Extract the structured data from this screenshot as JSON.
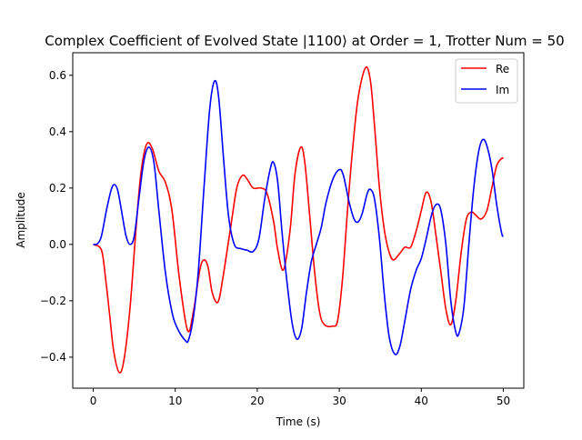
{
  "chart_data": {
    "type": "line",
    "title": "Complex Coefficient of Evolved State |1100⟩ at Order = 1, Trotter Num = 50",
    "xlabel": "Time (s)",
    "ylabel": "Amplitude",
    "xlim": [
      -2.5,
      52.5
    ],
    "ylim": [
      -0.51,
      0.68
    ],
    "x_ticks": [
      0,
      10,
      20,
      30,
      40,
      50
    ],
    "y_ticks": [
      -0.4,
      -0.2,
      0.0,
      0.2,
      0.4,
      0.6
    ],
    "y_tick_labels": [
      "−0.4",
      "−0.2",
      "0.0",
      "0.2",
      "0.4",
      "0.6"
    ],
    "grid": false,
    "legend_position": "top-right",
    "series": [
      {
        "name": "Re",
        "color": "#ff0000",
        "points": [
          [
            0,
            0.0
          ],
          [
            1,
            -0.02
          ],
          [
            1.5,
            -0.12
          ],
          [
            2,
            -0.25
          ],
          [
            2.5,
            -0.38
          ],
          [
            3.2,
            -0.455
          ],
          [
            3.8,
            -0.4
          ],
          [
            4.5,
            -0.22
          ],
          [
            5.2,
            0.05
          ],
          [
            5.8,
            0.25
          ],
          [
            6.5,
            0.355
          ],
          [
            7.2,
            0.34
          ],
          [
            8,
            0.26
          ],
          [
            8.8,
            0.22
          ],
          [
            9.6,
            0.12
          ],
          [
            10.5,
            -0.12
          ],
          [
            11.5,
            -0.305
          ],
          [
            12.2,
            -0.24
          ],
          [
            13,
            -0.09
          ],
          [
            13.5,
            -0.055
          ],
          [
            14,
            -0.08
          ],
          [
            14.5,
            -0.17
          ],
          [
            15.2,
            -0.205
          ],
          [
            15.8,
            -0.12
          ],
          [
            16.8,
            0.07
          ],
          [
            17.5,
            0.2
          ],
          [
            18.2,
            0.245
          ],
          [
            18.8,
            0.23
          ],
          [
            19.5,
            0.2
          ],
          [
            20.5,
            0.2
          ],
          [
            21.2,
            0.18
          ],
          [
            22,
            0.08
          ],
          [
            22.5,
            -0.02
          ],
          [
            23.2,
            -0.09
          ],
          [
            24,
            0.05
          ],
          [
            24.6,
            0.25
          ],
          [
            25.3,
            0.345
          ],
          [
            25.8,
            0.29
          ],
          [
            26.4,
            0.1
          ],
          [
            27,
            -0.1
          ],
          [
            27.6,
            -0.24
          ],
          [
            28.2,
            -0.285
          ],
          [
            29.2,
            -0.29
          ],
          [
            29.8,
            -0.27
          ],
          [
            30.4,
            -0.12
          ],
          [
            31,
            0.12
          ],
          [
            31.6,
            0.33
          ],
          [
            32.3,
            0.52
          ],
          [
            33.2,
            0.627
          ],
          [
            33.8,
            0.58
          ],
          [
            34.3,
            0.42
          ],
          [
            34.9,
            0.2
          ],
          [
            35.5,
            0.05
          ],
          [
            36.1,
            -0.03
          ],
          [
            36.6,
            -0.055
          ],
          [
            37.3,
            -0.035
          ],
          [
            38,
            -0.01
          ],
          [
            38.7,
            -0.01
          ],
          [
            39.4,
            0.05
          ],
          [
            40,
            0.12
          ],
          [
            40.6,
            0.185
          ],
          [
            41.2,
            0.15
          ],
          [
            41.8,
            0.03
          ],
          [
            42.4,
            -0.1
          ],
          [
            43,
            -0.23
          ],
          [
            43.6,
            -0.285
          ],
          [
            44.2,
            -0.2
          ],
          [
            44.9,
            -0.02
          ],
          [
            45.5,
            0.09
          ],
          [
            46.1,
            0.115
          ],
          [
            46.6,
            0.105
          ],
          [
            47.3,
            0.09
          ],
          [
            48,
            0.12
          ],
          [
            48.6,
            0.2
          ],
          [
            49.2,
            0.28
          ],
          [
            49.8,
            0.305
          ],
          [
            50,
            0.305
          ]
        ]
      },
      {
        "name": "Im",
        "color": "#0000ff",
        "points": [
          [
            0,
            0.0
          ],
          [
            0.5,
            0.002
          ],
          [
            1,
            0.03
          ],
          [
            1.6,
            0.12
          ],
          [
            2.2,
            0.195
          ],
          [
            2.6,
            0.212
          ],
          [
            3,
            0.19
          ],
          [
            3.5,
            0.11
          ],
          [
            4,
            0.03
          ],
          [
            4.5,
            0.0
          ],
          [
            5,
            0.03
          ],
          [
            5.6,
            0.17
          ],
          [
            6.2,
            0.3
          ],
          [
            6.8,
            0.345
          ],
          [
            7.4,
            0.29
          ],
          [
            8,
            0.12
          ],
          [
            8.8,
            -0.1
          ],
          [
            9.6,
            -0.24
          ],
          [
            10.3,
            -0.3
          ],
          [
            11.2,
            -0.34
          ],
          [
            11.6,
            -0.34
          ],
          [
            12.2,
            -0.26
          ],
          [
            12.8,
            -0.1
          ],
          [
            13.5,
            0.2
          ],
          [
            14.2,
            0.48
          ],
          [
            14.8,
            0.58
          ],
          [
            15.3,
            0.52
          ],
          [
            15.9,
            0.3
          ],
          [
            16.5,
            0.1
          ],
          [
            17.2,
            0.0
          ],
          [
            18,
            -0.015
          ],
          [
            18.7,
            -0.02
          ],
          [
            19.5,
            -0.025
          ],
          [
            20.2,
            0.02
          ],
          [
            20.9,
            0.16
          ],
          [
            21.6,
            0.27
          ],
          [
            22,
            0.29
          ],
          [
            22.5,
            0.22
          ],
          [
            23,
            0.05
          ],
          [
            23.5,
            -0.1
          ],
          [
            24.2,
            -0.27
          ],
          [
            24.8,
            -0.335
          ],
          [
            25.4,
            -0.3
          ],
          [
            26,
            -0.17
          ],
          [
            26.6,
            -0.06
          ],
          [
            27.2,
            0.0
          ],
          [
            27.8,
            0.06
          ],
          [
            28.4,
            0.15
          ],
          [
            29.2,
            0.23
          ],
          [
            30,
            0.265
          ],
          [
            30.5,
            0.245
          ],
          [
            31.2,
            0.15
          ],
          [
            31.8,
            0.09
          ],
          [
            32.3,
            0.08
          ],
          [
            32.8,
            0.11
          ],
          [
            33.4,
            0.18
          ],
          [
            33.8,
            0.195
          ],
          [
            34.3,
            0.16
          ],
          [
            34.9,
            0.02
          ],
          [
            35.5,
            -0.18
          ],
          [
            36.1,
            -0.33
          ],
          [
            36.8,
            -0.39
          ],
          [
            37.4,
            -0.36
          ],
          [
            38,
            -0.27
          ],
          [
            38.7,
            -0.16
          ],
          [
            39.4,
            -0.09
          ],
          [
            40,
            -0.05
          ],
          [
            40.6,
            0.02
          ],
          [
            41.3,
            0.11
          ],
          [
            41.9,
            0.143
          ],
          [
            42.4,
            0.12
          ],
          [
            43,
            0.0
          ],
          [
            43.6,
            -0.2
          ],
          [
            44.2,
            -0.31
          ],
          [
            44.6,
            -0.315
          ],
          [
            45.2,
            -0.22
          ],
          [
            45.8,
            0.0
          ],
          [
            46.4,
            0.2
          ],
          [
            47,
            0.33
          ],
          [
            47.5,
            0.372
          ],
          [
            48,
            0.35
          ],
          [
            48.6,
            0.27
          ],
          [
            49.2,
            0.14
          ],
          [
            49.8,
            0.04
          ],
          [
            50,
            0.03
          ]
        ]
      }
    ]
  }
}
